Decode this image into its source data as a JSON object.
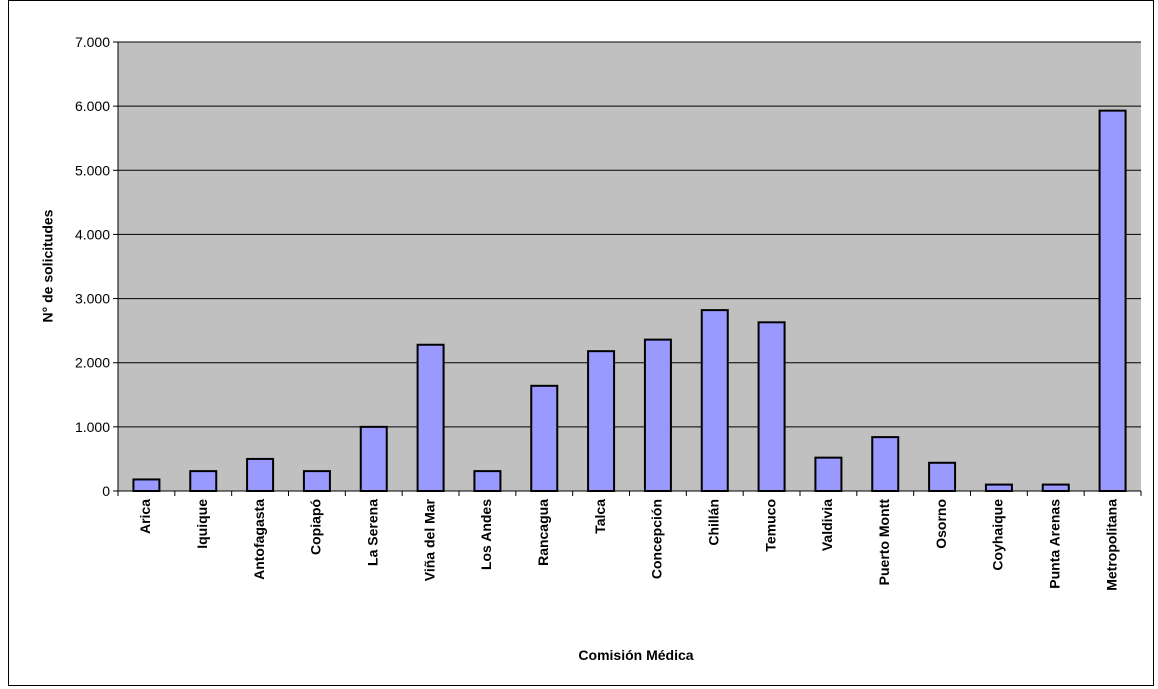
{
  "chart_data": {
    "type": "bar",
    "title": "",
    "xlabel": "Comisión Médica",
    "ylabel": "N° de solicitudes",
    "ylim": [
      0,
      7000
    ],
    "y_ticks": [
      0,
      1000,
      2000,
      3000,
      4000,
      5000,
      6000,
      7000
    ],
    "y_tick_labels": [
      "0",
      "1.000",
      "2.000",
      "3.000",
      "4.000",
      "5.000",
      "6.000",
      "7.000"
    ],
    "grid": true,
    "legend": "none",
    "colors": {
      "bar_fill": "#9999ff",
      "bar_stroke": "#000000",
      "plot_background": "#c0c0c0",
      "grid": "#000000"
    },
    "categories": [
      "Arica",
      "Iquique",
      "Antofagasta",
      "Copiapó",
      "La Serena",
      "Viña del Mar",
      "Los Andes",
      "Rancagua",
      "Talca",
      "Concepción",
      "Chillán",
      "Temuco",
      "Valdivia",
      "Puerto Montt",
      "Osorno",
      "Coyhaique",
      "Punta Arenas",
      "Metropolitana"
    ],
    "values": [
      180,
      310,
      500,
      310,
      1000,
      2280,
      310,
      1640,
      2180,
      2360,
      2820,
      2630,
      520,
      840,
      440,
      100,
      100,
      5930
    ]
  }
}
